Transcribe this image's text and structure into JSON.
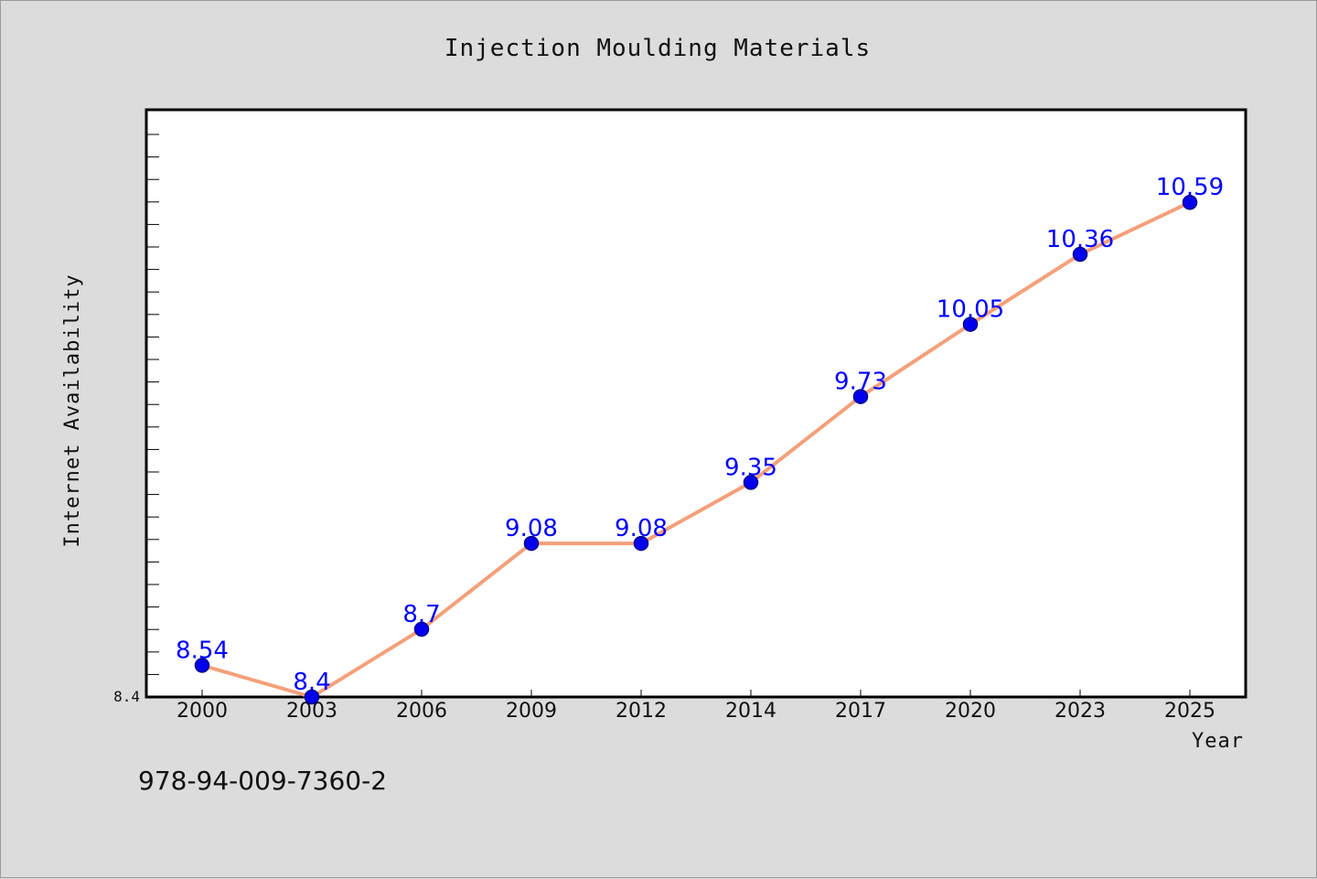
{
  "colors": {
    "background": "#dcdcdc",
    "plot_background": "#ffffff",
    "line": "#f4a07a",
    "marker_fill": "#0000ee",
    "marker_stroke": "#00008b",
    "data_label": "#0000ff"
  },
  "footer": {
    "text": "978-94-009-7360-2"
  },
  "chart_data": {
    "type": "line",
    "title": "Injection Moulding Materials",
    "xlabel": "Year",
    "ylabel": "Internet Availability",
    "categories": [
      "2000",
      "2003",
      "2006",
      "2009",
      "2012",
      "2014",
      "2017",
      "2020",
      "2023",
      "2025"
    ],
    "series": [
      {
        "values": [
          8.54,
          8.4,
          8.7,
          9.08,
          9.08,
          9.35,
          9.73,
          10.05,
          10.36,
          10.59
        ]
      }
    ],
    "data_labels": [
      "8.54",
      "8.4",
      "8.7",
      "9.08",
      "9.08",
      "9.35",
      "9.73",
      "10.05",
      "10.36",
      "10.59"
    ],
    "yticks": [
      "8.4"
    ],
    "ylim": [
      8.4,
      11.0
    ],
    "grid": false,
    "legend": "none"
  }
}
